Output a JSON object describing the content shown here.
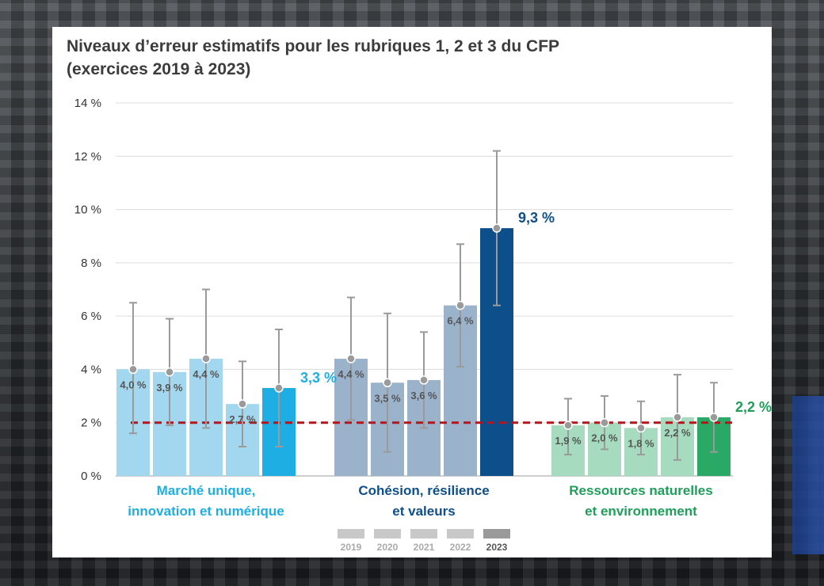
{
  "chart_data": {
    "type": "bar",
    "title": "Niveaux d’erreur estimatifs pour les rubriques 1, 2 et 3 du CFP (exercices 2019 à 2023)",
    "y_ticks": [
      "0 %",
      "2 %",
      "4 %",
      "6 %",
      "8 %",
      "10 %",
      "12 %",
      "14 %"
    ],
    "ylim": [
      0,
      14
    ],
    "threshold": 2,
    "grid": true,
    "legend_placement": "bottom",
    "legend": [
      "2019",
      "2020",
      "2021",
      "2022",
      "2023"
    ],
    "groups": [
      {
        "name": "Marché unique, innovation et numérique",
        "name_lines": [
          "Marché unique,",
          "innovation et numérique"
        ],
        "color": "#1eaee3",
        "bar_colors": [
          "#a3d7ef",
          "#a3d7ef",
          "#a3d7ef",
          "#a3d7ef",
          "#1eaee3"
        ],
        "values": [
          4.0,
          3.9,
          4.4,
          2.7,
          3.3
        ],
        "labels": [
          "4,0 %",
          "3,9 %",
          "4,4 %",
          "2,7 %",
          "3,3 %"
        ],
        "lower": [
          1.6,
          1.9,
          1.8,
          1.1,
          1.1
        ],
        "upper": [
          6.5,
          5.9,
          7.0,
          4.3,
          5.5
        ]
      },
      {
        "name": "Cohésion, résilience et valeurs",
        "name_lines": [
          "Cohésion, résilience",
          "et valeurs"
        ],
        "color": "#0d4f8a",
        "bar_colors": [
          "#9bb2cb",
          "#9bb2cb",
          "#9bb2cb",
          "#9bb2cb",
          "#0d4f8a"
        ],
        "values": [
          4.4,
          3.5,
          3.6,
          6.4,
          9.3
        ],
        "labels": [
          "4,4 %",
          "3,5 %",
          "3,6 %",
          "6,4 %",
          "9,3 %"
        ],
        "lower": [
          2.1,
          0.9,
          1.8,
          4.1,
          6.4
        ],
        "upper": [
          6.7,
          6.1,
          5.4,
          8.7,
          12.2
        ]
      },
      {
        "name": "Ressources naturelles et environnement",
        "name_lines": [
          "Ressources naturelles",
          "et environnement"
        ],
        "color": "#1f9e5a",
        "bar_colors": [
          "#a6dbbf",
          "#a6dbbf",
          "#a6dbbf",
          "#a6dbbf",
          "#2aa865"
        ],
        "values": [
          1.9,
          2.0,
          1.8,
          2.2,
          2.2
        ],
        "labels": [
          "1,9 %",
          "2,0 %",
          "1,8 %",
          "2,2 %",
          "2,2 %"
        ],
        "lower": [
          0.8,
          1.0,
          0.8,
          0.6,
          0.9
        ],
        "upper": [
          2.9,
          3.0,
          2.8,
          3.8,
          3.5
        ]
      }
    ],
    "colors": {
      "threshold_line": "#b3171d",
      "error_bar": "#9a9a9a",
      "grid": "#dcdcdc",
      "legend_prior": "#c8c8c8",
      "legend_current": "#9a9a9a"
    }
  }
}
